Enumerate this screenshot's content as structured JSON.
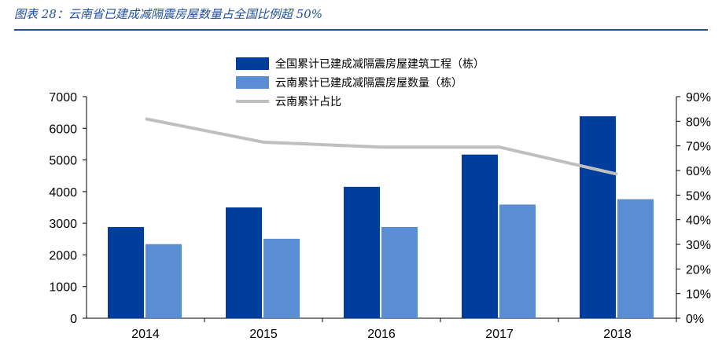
{
  "figure": {
    "title": "图表 28：云南省已建成减隔震房屋数量占全国比例超 50%"
  },
  "chart_data": {
    "type": "bar",
    "categories": [
      "2014",
      "2015",
      "2016",
      "2017",
      "2018"
    ],
    "series": [
      {
        "name": "全国累计已建成减隔震房屋建筑工程（栋）",
        "type": "bar",
        "axis": "left",
        "values": [
          2880,
          3500,
          4150,
          5170,
          6380
        ],
        "color": "#003e9e"
      },
      {
        "name": "云南累计已建成减隔震房屋数量（栋）",
        "type": "bar",
        "axis": "left",
        "values": [
          2340,
          2510,
          2880,
          3590,
          3760
        ],
        "color": "#5a8ed2"
      },
      {
        "name": "云南累计占比",
        "type": "line",
        "axis": "right",
        "values": [
          81,
          71.5,
          69.5,
          69.5,
          58.5
        ],
        "color": "#bfbfbf"
      }
    ],
    "y_left": {
      "min": 0,
      "max": 7000,
      "step": 1000,
      "ticks": [
        "0",
        "1000",
        "2000",
        "3000",
        "4000",
        "5000",
        "6000",
        "7000"
      ]
    },
    "y_right": {
      "min": 0,
      "max": 90,
      "step": 10,
      "ticks": [
        "0%",
        "10%",
        "20%",
        "30%",
        "40%",
        "50%",
        "60%",
        "70%",
        "80%",
        "90%"
      ]
    },
    "legend": "top-center",
    "grid": false
  }
}
